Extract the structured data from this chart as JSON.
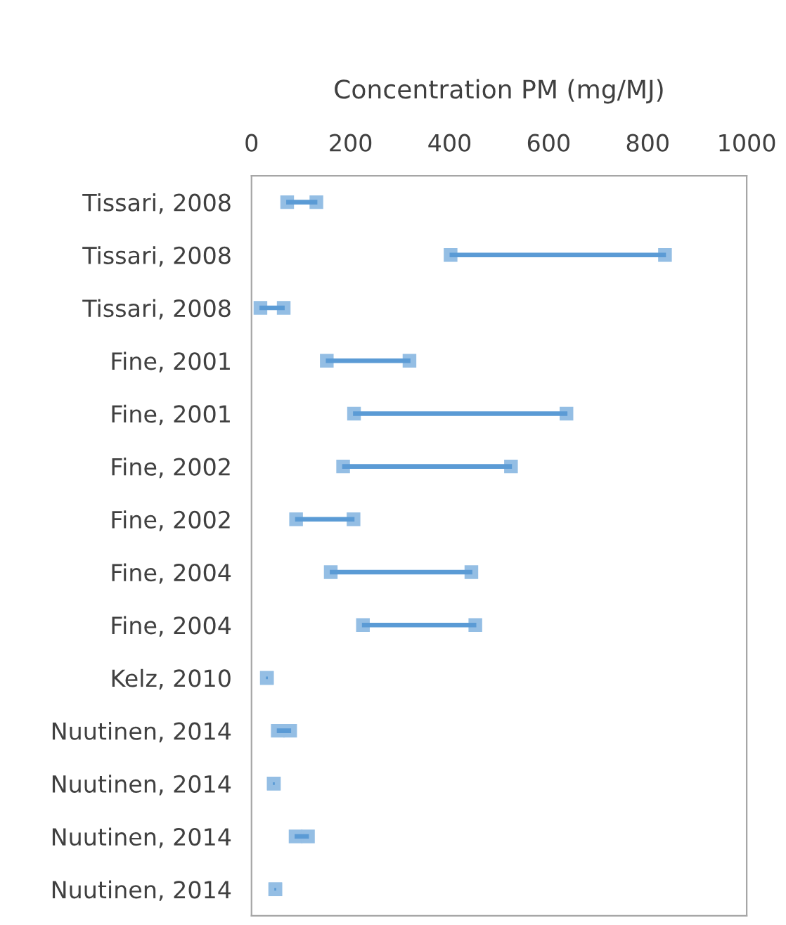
{
  "chart_data": {
    "type": "bar",
    "orientation": "horizontal",
    "xlabel": "Concentration PM (mg/MJ)",
    "categories": [
      "Tissari, 2008",
      "Tissari, 2008",
      "Tissari, 2008",
      "Fine, 2001",
      "Fine, 2001",
      "Fine, 2002",
      "Fine, 2002",
      "Fine, 2004",
      "Fine, 2004",
      "Kelz, 2010",
      "Nuutinen, 2014",
      "Nuutinen, 2014",
      "Nuutinen, 2014",
      "Nuutinen, 2014"
    ],
    "base": [
      72,
      402,
      18,
      152,
      207,
      185,
      90,
      160,
      225,
      31,
      53,
      45,
      89,
      48
    ],
    "values": [
      59,
      433,
      47,
      167,
      429,
      339,
      116,
      284,
      227,
      0,
      25,
      0,
      25,
      0
    ],
    "color": "#5b9bd5",
    "marker": "square",
    "xlim": [
      0,
      1000
    ],
    "xticks": [
      0,
      200,
      400,
      600,
      800,
      1000
    ],
    "grid": false,
    "legend": false
  }
}
